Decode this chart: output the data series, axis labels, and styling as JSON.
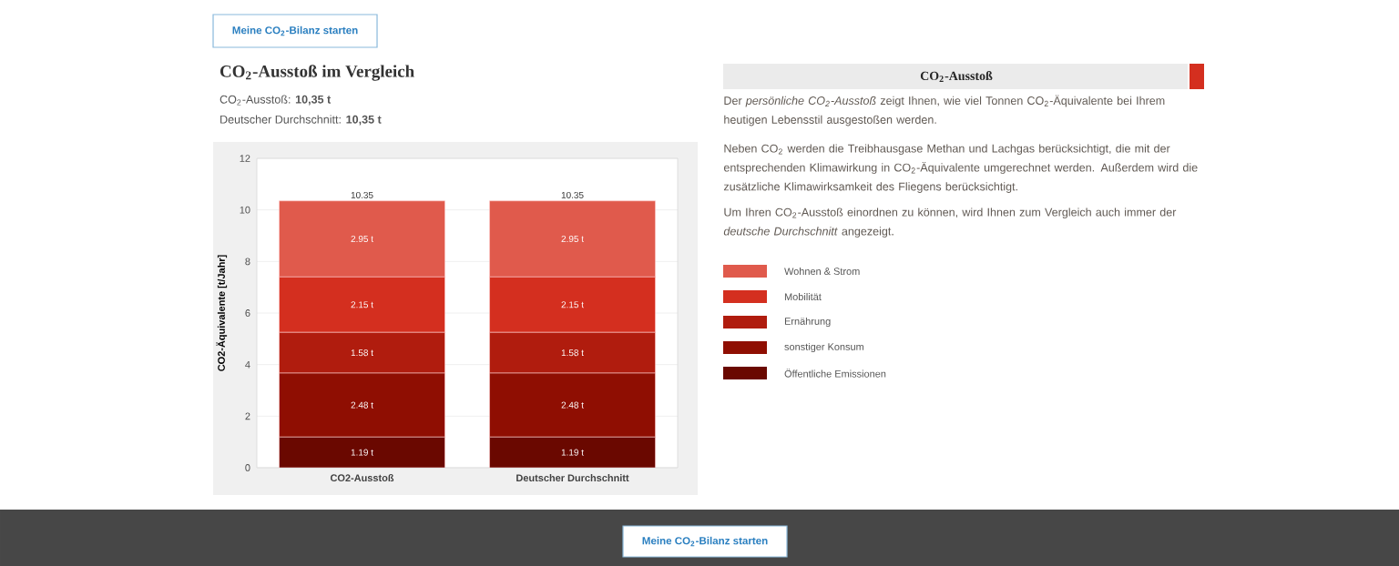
{
  "chart_data": {
    "type": "bar",
    "stacked": true,
    "title": "CO$_{2}$-Ausstoß im Vergleich",
    "subtitle": "CO$_{2}$-Ausstoß: **10,35 t**",
    "annotations": [
      "Deutscher Durchschnitt: **10,35 t**",
      "Meine CO$_{2}$-Bilanz starten",
      "CO$_{2}$-Ausstoß",
      "Der *persönliche CO$_{2}$-Ausstoß* zeigt Ihnen, wie viel Tonnen CO$_{2}$-Äquivalente bei Ihrem heutigen Lebensstil ausgestoßen werden.",
      "Neben CO$_{2}$ werden die Treibhausgase Methan und Lachgas berücksichtigt, die mit der entsprechenden Klimawirkung in CO$_{2}$-Äquivalente umgerechnet werden. Außerdem wird die zusätzliche Klimawirksamkeit des Fliegens berücksichtigt.",
      "Um Ihren CO$_{2}$-Ausstoß einordnen zu können, wird Ihnen zum Vergleich auch immer der *deutsche Durchschnitt* angezeigt.",
      "Meine CO$_{2}$-Bilanz starten"
    ],
    "ylabel": "CO2-Äquivalente [t/Jahr]",
    "categories": [
      "CO2-Ausstoß",
      "Deutscher Durchschnitt"
    ],
    "series": [
      {
        "name": "Öffentliche Emissionen",
        "color": "#6a0800",
        "values": [
          1.19,
          1.19
        ],
        "value_labels": [
          "1.19 t",
          "1.19 t"
        ]
      },
      {
        "name": "sonstiger Konsum",
        "color": "#8f0e02",
        "values": [
          2.48,
          2.48
        ],
        "value_labels": [
          "2.48 t",
          "2.48 t"
        ]
      },
      {
        "name": "Ernährung",
        "color": "#b01c0e",
        "values": [
          1.58,
          1.58
        ],
        "value_labels": [
          "1.58 t",
          "1.58 t"
        ]
      },
      {
        "name": "Mobilität",
        "color": "#d42f1f",
        "values": [
          2.15,
          2.15
        ],
        "value_labels": [
          "2.15 t",
          "2.15 t"
        ]
      },
      {
        "name": "Wohnen & Strom",
        "color": "#e05a4c",
        "values": [
          2.95,
          2.95
        ],
        "value_labels": [
          "2.95 t",
          "2.95 t"
        ]
      }
    ],
    "totals": [
      "10.35",
      "10.35"
    ],
    "ylim": [
      0,
      12
    ],
    "yticks": [
      0,
      2,
      4,
      6,
      8,
      10,
      12
    ],
    "grid": true,
    "legend": "right"
  }
}
